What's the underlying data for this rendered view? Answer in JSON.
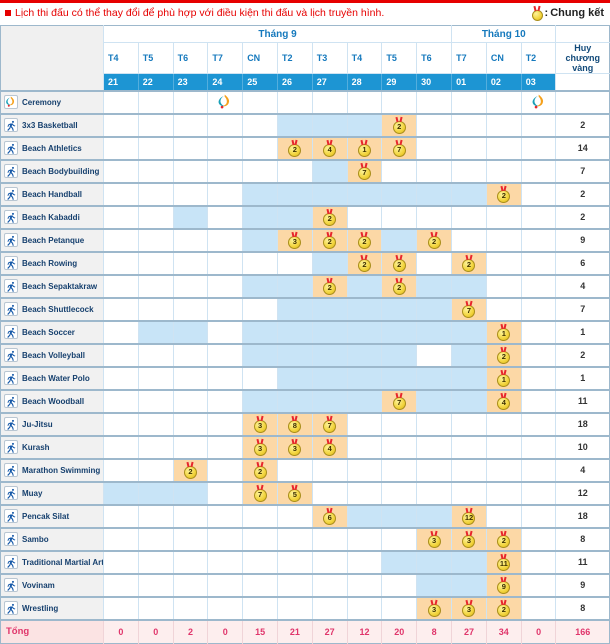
{
  "note": {
    "text": "Lịch thi đấu có thể thay đổi để phù hợp với điều kiện thi đấu và lịch truyền hình."
  },
  "legend": {
    "separator": ":",
    "label": "Chung kết"
  },
  "table": {
    "months": [
      {
        "label": "Tháng 9",
        "span": 10
      },
      {
        "label": "Tháng 10",
        "span": 3
      }
    ],
    "days": [
      "T4",
      "T5",
      "T6",
      "T7",
      "CN",
      "T2",
      "T3",
      "T4",
      "T5",
      "T6",
      "T7",
      "CN",
      "T2"
    ],
    "dates": [
      "21",
      "22",
      "23",
      "24",
      "25",
      "26",
      "27",
      "28",
      "29",
      "30",
      "01",
      "02",
      "03"
    ],
    "gold_header": "Huy chương vàng",
    "rows": [
      {
        "name": "Ceremony",
        "icon": "flame",
        "cells": [
          "",
          "",
          "",
          "f",
          "",
          "",
          "",
          "",
          "",
          "",
          "",
          "",
          "f"
        ],
        "gold": ""
      },
      {
        "name": "3x3 Basketball",
        "icon": "sport",
        "cells": [
          "",
          "",
          "",
          "",
          "",
          "b",
          "b",
          "b",
          "m:2",
          "",
          "",
          "",
          ""
        ],
        "gold": "2"
      },
      {
        "name": "Beach Athletics",
        "icon": "sport",
        "cells": [
          "",
          "",
          "",
          "",
          "",
          "m:2",
          "m:4",
          "m:1",
          "m:7",
          "",
          "",
          "",
          ""
        ],
        "gold": "14"
      },
      {
        "name": "Beach Bodybuilding",
        "icon": "sport",
        "cells": [
          "",
          "",
          "",
          "",
          "",
          "",
          "b",
          "m:7",
          "",
          "",
          "",
          "",
          ""
        ],
        "gold": "7"
      },
      {
        "name": "Beach Handball",
        "icon": "sport",
        "cells": [
          "",
          "",
          "",
          "",
          "b",
          "b",
          "b",
          "b",
          "b",
          "b",
          "b",
          "m:2",
          ""
        ],
        "gold": "2"
      },
      {
        "name": "Beach Kabaddi",
        "icon": "sport",
        "cells": [
          "",
          "",
          "b",
          "",
          "b",
          "b",
          "m:2",
          "",
          "",
          "",
          "",
          "",
          ""
        ],
        "gold": "2"
      },
      {
        "name": "Beach Petanque",
        "icon": "sport",
        "cells": [
          "",
          "",
          "",
          "",
          "b",
          "m:3",
          "m:2",
          "m:2",
          "b",
          "m:2",
          "",
          "",
          ""
        ],
        "gold": "9"
      },
      {
        "name": "Beach Rowing",
        "icon": "sport",
        "cells": [
          "",
          "",
          "",
          "",
          "",
          "",
          "b",
          "m:2",
          "m:2",
          "",
          "m:2",
          "",
          ""
        ],
        "gold": "6"
      },
      {
        "name": "Beach Sepaktakraw",
        "icon": "sport",
        "cells": [
          "",
          "",
          "",
          "",
          "b",
          "b",
          "m:2",
          "b",
          "m:2",
          "b",
          "b",
          "",
          ""
        ],
        "gold": "4"
      },
      {
        "name": "Beach Shuttlecock",
        "icon": "sport",
        "cells": [
          "",
          "",
          "",
          "",
          "",
          "b",
          "b",
          "b",
          "b",
          "b",
          "m:7",
          "",
          ""
        ],
        "gold": "7"
      },
      {
        "name": "Beach Soccer",
        "icon": "sport",
        "cells": [
          "",
          "b",
          "b",
          "",
          "b",
          "b",
          "b",
          "b",
          "b",
          "b",
          "b",
          "m:1",
          ""
        ],
        "gold": "1"
      },
      {
        "name": "Beach Volleyball",
        "icon": "sport",
        "cells": [
          "",
          "",
          "",
          "",
          "b",
          "b",
          "b",
          "b",
          "b",
          "",
          "b",
          "m:2",
          ""
        ],
        "gold": "2"
      },
      {
        "name": "Beach Water Polo",
        "icon": "sport",
        "cells": [
          "",
          "",
          "",
          "",
          "",
          "b",
          "b",
          "b",
          "b",
          "b",
          "b",
          "m:1",
          ""
        ],
        "gold": "1"
      },
      {
        "name": "Beach Woodball",
        "icon": "sport",
        "cells": [
          "",
          "",
          "",
          "",
          "b",
          "b",
          "b",
          "b",
          "m:7",
          "b",
          "b",
          "m:4",
          ""
        ],
        "gold": "11"
      },
      {
        "name": "Ju-Jitsu",
        "icon": "sport",
        "cells": [
          "",
          "",
          "",
          "",
          "m:3",
          "m:8",
          "m:7",
          "",
          "",
          "",
          "",
          "",
          ""
        ],
        "gold": "18"
      },
      {
        "name": "Kurash",
        "icon": "sport",
        "cells": [
          "",
          "",
          "",
          "",
          "m:3",
          "m:3",
          "m:4",
          "",
          "",
          "",
          "",
          "",
          ""
        ],
        "gold": "10"
      },
      {
        "name": "Marathon Swimming",
        "icon": "sport",
        "cells": [
          "",
          "",
          "m:2",
          "",
          "m:2",
          "",
          "",
          "",
          "",
          "",
          "",
          "",
          ""
        ],
        "gold": "4"
      },
      {
        "name": "Muay",
        "icon": "sport",
        "cells": [
          "b",
          "b",
          "b",
          "",
          "m:7",
          "m:5",
          "",
          "",
          "",
          "",
          "",
          "",
          ""
        ],
        "gold": "12"
      },
      {
        "name": "Pencak Silat",
        "icon": "sport",
        "cells": [
          "",
          "",
          "",
          "",
          "",
          "",
          "m:6",
          "b",
          "b",
          "b",
          "m:12",
          "",
          ""
        ],
        "gold": "18"
      },
      {
        "name": "Sambo",
        "icon": "sport",
        "cells": [
          "",
          "",
          "",
          "",
          "",
          "",
          "",
          "",
          "",
          "m:3",
          "m:3",
          "m:2",
          ""
        ],
        "gold": "8"
      },
      {
        "name": "Traditional Martial Art",
        "icon": "sport",
        "cells": [
          "",
          "",
          "",
          "",
          "",
          "",
          "",
          "",
          "b",
          "b",
          "b",
          "m:11",
          ""
        ],
        "gold": "11"
      },
      {
        "name": "Vovinam",
        "icon": "sport",
        "cells": [
          "",
          "",
          "",
          "",
          "",
          "",
          "",
          "",
          "",
          "b",
          "b",
          "m:9",
          ""
        ],
        "gold": "9"
      },
      {
        "name": "Wrestling",
        "icon": "sport",
        "cells": [
          "",
          "",
          "",
          "",
          "",
          "",
          "",
          "",
          "",
          "m:3",
          "m:3",
          "m:2",
          ""
        ],
        "gold": "8"
      }
    ],
    "total": {
      "label": "Tổng",
      "values": [
        "0",
        "0",
        "2",
        "0",
        "15",
        "21",
        "27",
        "12",
        "20",
        "8",
        "27",
        "34",
        "0"
      ],
      "grand": "166"
    }
  },
  "colors": {
    "topbar_red": "#e60000",
    "note_red": "#e60000",
    "header_text_blue": "#1579bd",
    "date_row_blue": "#1d95d3",
    "blue_cell": "#c8e4f7",
    "medal_cell_orange": "#fcd8a6",
    "medal_gold": "#f2d43c",
    "ribbon_red": "#e8262d",
    "total_pink_text": "#e0356b",
    "total_row_bg": "#fdeeee",
    "sport_text_navy": "#16406e",
    "grid_line": "#cfe3f2",
    "row_separator": "#9db8cc"
  }
}
